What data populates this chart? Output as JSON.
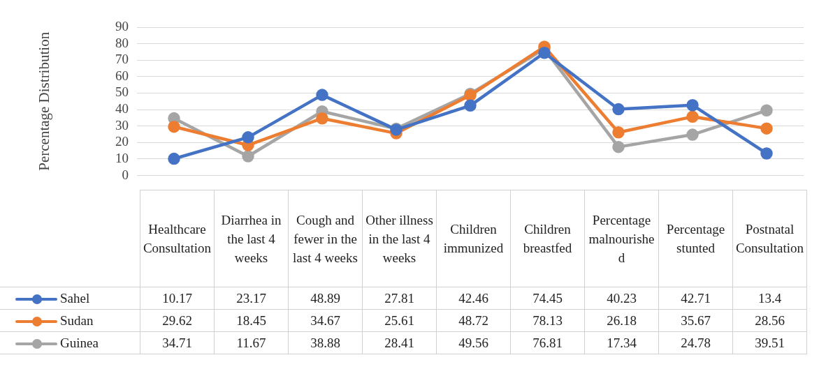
{
  "chart_data": {
    "type": "line",
    "ylabel": "Percentage Distribution",
    "categories": [
      "Healthcare Consultation",
      "Diarrhea in the last 4 weeks",
      "Cough and fewer in the last 4 weeks",
      "Other illness in the last 4 weeks",
      "Children immunized",
      "Children breastfed",
      "Percentage malnourished",
      "Percentage stunted",
      "Postnatal Consultation"
    ],
    "series": [
      {
        "name": "Sahel",
        "color": "#4472c4",
        "values": [
          10.17,
          23.17,
          48.89,
          27.81,
          42.46,
          74.45,
          40.23,
          42.71,
          13.4
        ]
      },
      {
        "name": "Sudan",
        "color": "#ed7d31",
        "values": [
          29.62,
          18.45,
          34.67,
          25.61,
          48.72,
          78.13,
          26.18,
          35.67,
          28.56
        ]
      },
      {
        "name": "Guinea",
        "color": "#a5a5a5",
        "values": [
          34.71,
          11.67,
          38.88,
          28.41,
          49.56,
          76.81,
          17.34,
          24.78,
          39.51
        ]
      }
    ],
    "ylim": [
      0,
      90
    ],
    "yticks": [
      0,
      10,
      20,
      30,
      40,
      50,
      60,
      70,
      80,
      90
    ],
    "grid": "y",
    "legend": "bottom left",
    "marker": "circle",
    "line_style": "solid",
    "data_labels": true
  }
}
